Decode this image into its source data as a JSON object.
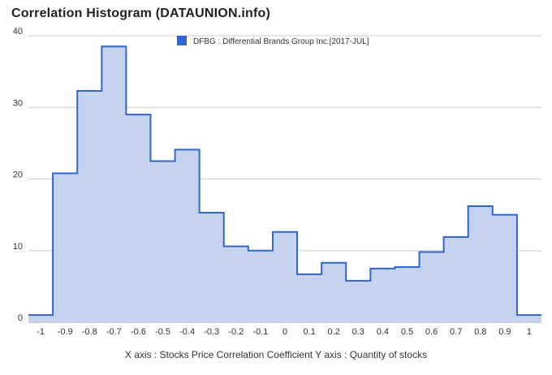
{
  "title": "Correlation Histogram (DATAUNION.info)",
  "caption": "X axis : Stocks Price Correlation Coefficient  Y axis : Quantity of stocks",
  "colors": {
    "line": "#3366cc",
    "fill": "#c5d2f0",
    "grid": "#cccccc",
    "legend_swatch": "#3366cc"
  },
  "chart_data": {
    "type": "area",
    "title": "Correlation Histogram (DATAUNION.info)",
    "xlabel": "Stocks Price Correlation Coefficient",
    "ylabel": "Quantity of stocks",
    "legend": {
      "position": "top-center"
    },
    "grid": true,
    "xlim": [
      -1.05,
      1.05
    ],
    "ylim": [
      0,
      40
    ],
    "x_ticks": [
      "-1",
      "-0.9",
      "-0.8",
      "-0.7",
      "-0.6",
      "-0.5",
      "-0.4",
      "-0.3",
      "-0.2",
      "-0.1",
      "0",
      "0.1",
      "0.2",
      "0.3",
      "0.4",
      "0.5",
      "0.6",
      "0.7",
      "0.8",
      "0.9",
      "1"
    ],
    "y_ticks": [
      0,
      10,
      20,
      30,
      40
    ],
    "series": [
      {
        "name": "DFBG : Differential Brands Group Inc.[2017-JUL]",
        "x": [
          -1.0,
          -0.9,
          -0.8,
          -0.7,
          -0.6,
          -0.5,
          -0.4,
          -0.3,
          -0.2,
          -0.1,
          0.0,
          0.1,
          0.2,
          0.3,
          0.4,
          0.5,
          0.6,
          0.7,
          0.8,
          0.9,
          1.0
        ],
        "values": [
          1,
          20.8,
          32.3,
          38.5,
          29,
          22.5,
          24.1,
          15.3,
          10.6,
          10,
          12.6,
          6.7,
          8.3,
          5.8,
          7.5,
          7.7,
          9.8,
          11.9,
          16.2,
          15,
          1
        ]
      }
    ]
  }
}
